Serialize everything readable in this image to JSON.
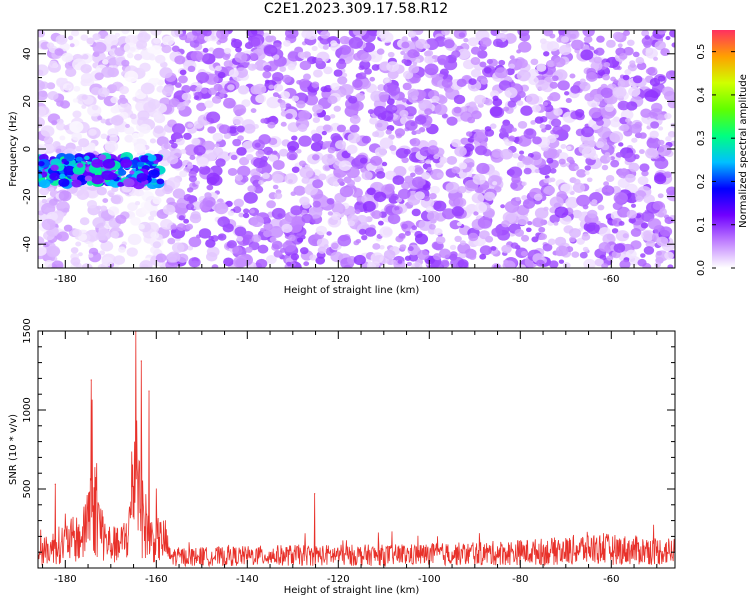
{
  "title": "C2E1.2023.309.17.58.R12",
  "chart_data": [
    {
      "type": "heatmap",
      "xlabel": "Height of straight line (km)",
      "ylabel": "Frequency (Hz)",
      "xlim": [
        -186,
        -46
      ],
      "ylim": [
        -50,
        50
      ],
      "x_ticks": [
        -180,
        -160,
        -140,
        -120,
        -100,
        -80,
        -60
      ],
      "y_ticks": [
        -40,
        -20,
        0,
        20,
        40
      ],
      "colorbar": {
        "label": "Normalized spectral amplitude",
        "range": [
          0.0,
          0.55
        ],
        "ticks": [
          0.0,
          0.1,
          0.2,
          0.3,
          0.4,
          0.5
        ],
        "colors": [
          "#ffffff",
          "#c080ff",
          "#7000ff",
          "#0000ff",
          "#00c0ff",
          "#00ff80",
          "#60ff00",
          "#d0ff00",
          "#ffa000",
          "#ff3060"
        ]
      },
      "features": {
        "strong_band": {
          "x": [
            -186,
            -159
          ],
          "freq_center": -9,
          "freq_halfwidth": 6,
          "amplitude": 0.28
        },
        "background_amplitude": 0.08
      }
    },
    {
      "type": "line",
      "xlabel": "Height of straight line (km)",
      "ylabel": "SNR (10 * v/v)",
      "xlim": [
        -186,
        -46
      ],
      "ylim": [
        0,
        1500
      ],
      "x_ticks": [
        -180,
        -160,
        -140,
        -120,
        -100,
        -80,
        -60
      ],
      "y_ticks": [
        500,
        1000,
        1500
      ],
      "series": [
        {
          "color": "#e8312a",
          "profile_x": [
            -186,
            -180,
            -176,
            -175,
            -174,
            -173,
            -171,
            -168,
            -166,
            -165,
            -164.5,
            -164,
            -163,
            -162,
            -161,
            -160,
            -158,
            -157,
            -150,
            -130,
            -125,
            -110,
            -100,
            -90,
            -80,
            -70,
            -65,
            -60,
            -50,
            -46
          ],
          "profile_base": [
            100,
            180,
            220,
            420,
            480,
            360,
            180,
            150,
            260,
            650,
            700,
            680,
            380,
            260,
            200,
            200,
            190,
            80,
            80,
            90,
            90,
            90,
            95,
            100,
            110,
            120,
            140,
            130,
            120,
            120
          ],
          "peaks": [
            {
              "x": -182.2,
              "y": 530
            },
            {
              "x": -174.3,
              "y": 1190
            },
            {
              "x": -164.5,
              "y": 1500
            },
            {
              "x": -163.3,
              "y": 1310
            },
            {
              "x": -161.6,
              "y": 1120
            },
            {
              "x": -125.2,
              "y": 470
            }
          ]
        }
      ]
    }
  ]
}
